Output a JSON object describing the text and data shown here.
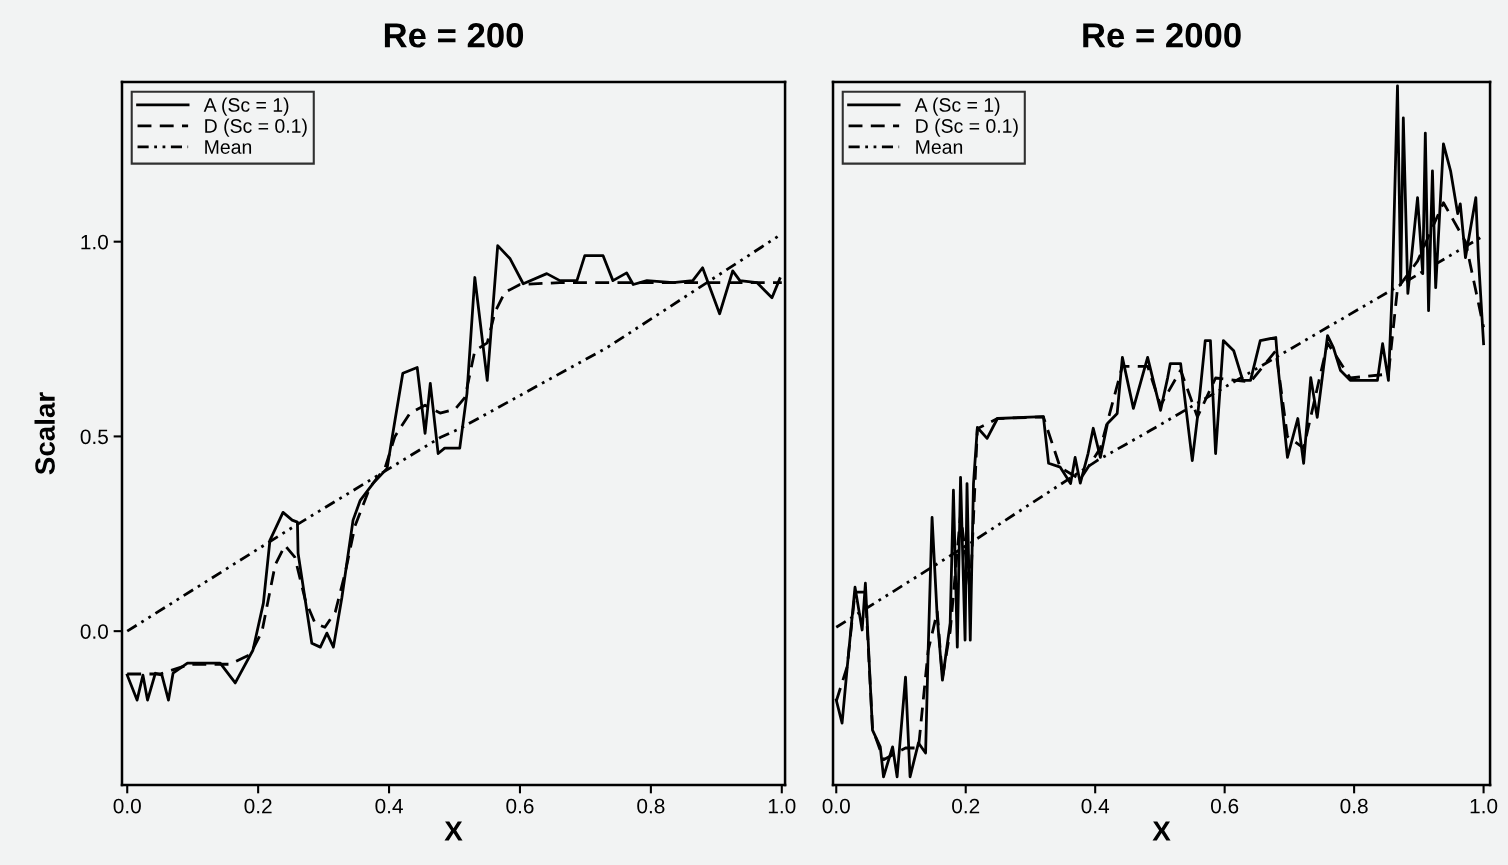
{
  "chart_data": [
    {
      "type": "line",
      "title": "Re = 200",
      "xlabel": "X",
      "ylabel": "Scalar",
      "legend": "top left",
      "grid": false,
      "xlim": [
        -0.008,
        1.005
      ],
      "ylim": [
        -0.395,
        1.41
      ],
      "xticks": [
        {
          "value": 0,
          "label": "0.0"
        },
        {
          "value": 0.2,
          "label": "0.2"
        },
        {
          "value": 0.4,
          "label": "0.4"
        },
        {
          "value": 0.6,
          "label": "0.6"
        },
        {
          "value": 0.8,
          "label": "0.8"
        },
        {
          "value": 1.0,
          "label": "1.0"
        }
      ],
      "yticks": [
        {
          "value": 0,
          "label": "0.0"
        },
        {
          "value": 0.5,
          "label": "0.5"
        },
        {
          "value": 1.0,
          "label": "1.0"
        }
      ],
      "series": [
        {
          "name": "A (Sc = 1)",
          "color": "#000000",
          "line_style": "solid",
          "x": [
            0,
            0.015,
            0.024,
            0.031,
            0.043,
            0.053,
            0.063,
            0.07,
            0.092,
            0.142,
            0.165,
            0.192,
            0.208,
            0.218,
            0.238,
            0.252,
            0.26,
            0.261,
            0.282,
            0.295,
            0.305,
            0.315,
            0.328,
            0.345,
            0.356,
            0.376,
            0.397,
            0.409,
            0.421,
            0.443,
            0.455,
            0.463,
            0.475,
            0.485,
            0.508,
            0.519,
            0.531,
            0.55,
            0.566,
            0.585,
            0.605,
            0.641,
            0.661,
            0.687,
            0.699,
            0.727,
            0.742,
            0.763,
            0.773,
            0.794,
            0.834,
            0.864,
            0.879,
            0.905,
            0.925,
            0.936,
            0.962,
            0.985,
            0.997
          ],
          "values": [
            -0.113,
            -0.177,
            -0.113,
            -0.177,
            -0.108,
            -0.113,
            -0.177,
            -0.108,
            -0.082,
            -0.082,
            -0.133,
            -0.049,
            0.072,
            0.233,
            0.305,
            0.285,
            0.28,
            0.2,
            -0.031,
            -0.041,
            -0.005,
            -0.041,
            0.087,
            0.285,
            0.336,
            0.38,
            0.418,
            0.541,
            0.662,
            0.677,
            0.508,
            0.636,
            0.456,
            0.47,
            0.47,
            0.61,
            0.908,
            0.644,
            0.99,
            0.956,
            0.892,
            0.918,
            0.9,
            0.9,
            0.964,
            0.964,
            0.9,
            0.92,
            0.89,
            0.9,
            0.895,
            0.9,
            0.933,
            0.815,
            0.925,
            0.9,
            0.895,
            0.856,
            0.905
          ]
        },
        {
          "name": "D (Sc = 0.1)",
          "color": "#000000",
          "line_style": "dashed",
          "x": [
            0,
            0.05,
            0.096,
            0.157,
            0.188,
            0.206,
            0.226,
            0.241,
            0.256,
            0.272,
            0.287,
            0.302,
            0.318,
            0.333,
            0.348,
            0.371,
            0.394,
            0.409,
            0.432,
            0.455,
            0.478,
            0.501,
            0.516,
            0.531,
            0.55,
            0.562,
            0.577,
            0.6,
            0.661,
            1.0
          ],
          "values": [
            -0.11,
            -0.11,
            -0.085,
            -0.085,
            -0.06,
            0.0,
            0.17,
            0.22,
            0.19,
            0.08,
            0.02,
            0.01,
            0.05,
            0.15,
            0.27,
            0.37,
            0.42,
            0.5,
            0.56,
            0.58,
            0.56,
            0.57,
            0.6,
            0.72,
            0.74,
            0.82,
            0.87,
            0.89,
            0.895,
            0.895
          ]
        },
        {
          "name": "Mean",
          "color": "#000000",
          "line_style": "dotted",
          "x": [
            0,
            0.253,
            0.478,
            0.508,
            0.733,
            1.0
          ],
          "values": [
            0.0,
            0.267,
            0.497,
            0.52,
            0.728,
            1.02
          ]
        }
      ]
    },
    {
      "type": "line",
      "title": "Re = 2000",
      "xlabel": "X",
      "legend": "top left",
      "grid": false,
      "tick_labels": "x",
      "xlim": [
        -0.005,
        1.01
      ],
      "ylim": [
        -0.395,
        1.41
      ],
      "yticks": [
        {
          "value": 0,
          "label": null
        },
        {
          "value": 0.5,
          "label": null
        },
        {
          "value": 1.0,
          "label": null
        }
      ],
      "xticks": [
        {
          "value": 0,
          "label": "0.0"
        },
        {
          "value": 0.2,
          "label": "0.2"
        },
        {
          "value": 0.4,
          "label": "0.4"
        },
        {
          "value": 0.6,
          "label": "0.6"
        },
        {
          "value": 0.8,
          "label": "0.8"
        },
        {
          "value": 1.0,
          "label": "1.0"
        }
      ],
      "series": [
        {
          "name": "A (Sc = 1)",
          "color": "#000000",
          "line_style": "solid",
          "x": [
            0,
            0.009,
            0.017,
            0.029,
            0.04,
            0.045,
            0.056,
            0.068,
            0.073,
            0.087,
            0.094,
            0.107,
            0.114,
            0.127,
            0.138,
            0.142,
            0.148,
            0.156,
            0.164,
            0.176,
            0.181,
            0.187,
            0.192,
            0.199,
            0.202,
            0.207,
            0.212,
            0.218,
            0.233,
            0.249,
            0.32,
            0.328,
            0.346,
            0.362,
            0.369,
            0.377,
            0.389,
            0.397,
            0.408,
            0.419,
            0.434,
            0.442,
            0.459,
            0.481,
            0.501,
            0.512,
            0.516,
            0.532,
            0.55,
            0.558,
            0.57,
            0.578,
            0.586,
            0.598,
            0.614,
            0.628,
            0.64,
            0.655,
            0.679,
            0.683,
            0.697,
            0.713,
            0.722,
            0.733,
            0.743,
            0.759,
            0.768,
            0.779,
            0.794,
            0.836,
            0.844,
            0.853,
            0.859,
            0.867,
            0.872,
            0.876,
            0.883,
            0.898,
            0.906,
            0.91,
            0.915,
            0.921,
            0.926,
            0.938,
            0.949,
            0.96,
            0.964,
            0.972,
            0.988,
            0.992,
            1.0
          ],
          "values": [
            -0.177,
            -0.236,
            -0.092,
            0.113,
            0.003,
            0.123,
            -0.254,
            -0.297,
            -0.374,
            -0.297,
            -0.374,
            -0.118,
            -0.374,
            -0.287,
            -0.313,
            -0.049,
            0.292,
            0.036,
            -0.126,
            0.021,
            0.362,
            -0.041,
            0.395,
            -0.023,
            0.379,
            -0.023,
            0.379,
            0.523,
            0.495,
            0.546,
            0.551,
            0.431,
            0.421,
            0.379,
            0.446,
            0.38,
            0.456,
            0.521,
            0.446,
            0.533,
            0.559,
            0.703,
            0.572,
            0.703,
            0.567,
            0.651,
            0.687,
            0.687,
            0.438,
            0.549,
            0.746,
            0.746,
            0.456,
            0.746,
            0.72,
            0.644,
            0.644,
            0.746,
            0.754,
            0.669,
            0.446,
            0.546,
            0.431,
            0.651,
            0.549,
            0.759,
            0.728,
            0.669,
            0.644,
            0.644,
            0.738,
            0.644,
            0.882,
            1.4,
            0.892,
            1.318,
            0.867,
            1.113,
            0.918,
            1.279,
            0.823,
            1.182,
            0.882,
            1.251,
            1.182,
            1.072,
            1.097,
            0.959,
            1.113,
            0.959,
            0.738
          ]
        },
        {
          "name": "D (Sc = 0.1)",
          "color": "#000000",
          "line_style": "dashed",
          "x": [
            0,
            0.017,
            0.029,
            0.045,
            0.056,
            0.073,
            0.107,
            0.127,
            0.142,
            0.156,
            0.164,
            0.176,
            0.192,
            0.207,
            0.218,
            0.249,
            0.32,
            0.346,
            0.377,
            0.408,
            0.442,
            0.481,
            0.501,
            0.532,
            0.558,
            0.586,
            0.64,
            0.679,
            0.697,
            0.722,
            0.759,
            0.794,
            0.853,
            0.867,
            0.898,
            0.938,
            0.972,
            1.0
          ],
          "values": [
            -0.18,
            -0.09,
            0.1,
            0.1,
            -0.25,
            -0.33,
            -0.3,
            -0.3,
            -0.05,
            0.05,
            -0.12,
            0.0,
            0.3,
            0.1,
            0.52,
            0.546,
            0.55,
            0.42,
            0.39,
            0.47,
            0.68,
            0.68,
            0.58,
            0.67,
            0.55,
            0.65,
            0.64,
            0.72,
            0.5,
            0.47,
            0.74,
            0.65,
            0.66,
            0.88,
            0.95,
            1.1,
            1.0,
            0.78
          ]
        },
        {
          "name": "Mean",
          "color": "#000000",
          "line_style": "dotted",
          "x": [
            0,
            0.207,
            0.403,
            0.485,
            0.856,
            1.0
          ],
          "values": [
            0.01,
            0.226,
            0.438,
            0.515,
            0.874,
            1.015
          ]
        }
      ]
    }
  ]
}
